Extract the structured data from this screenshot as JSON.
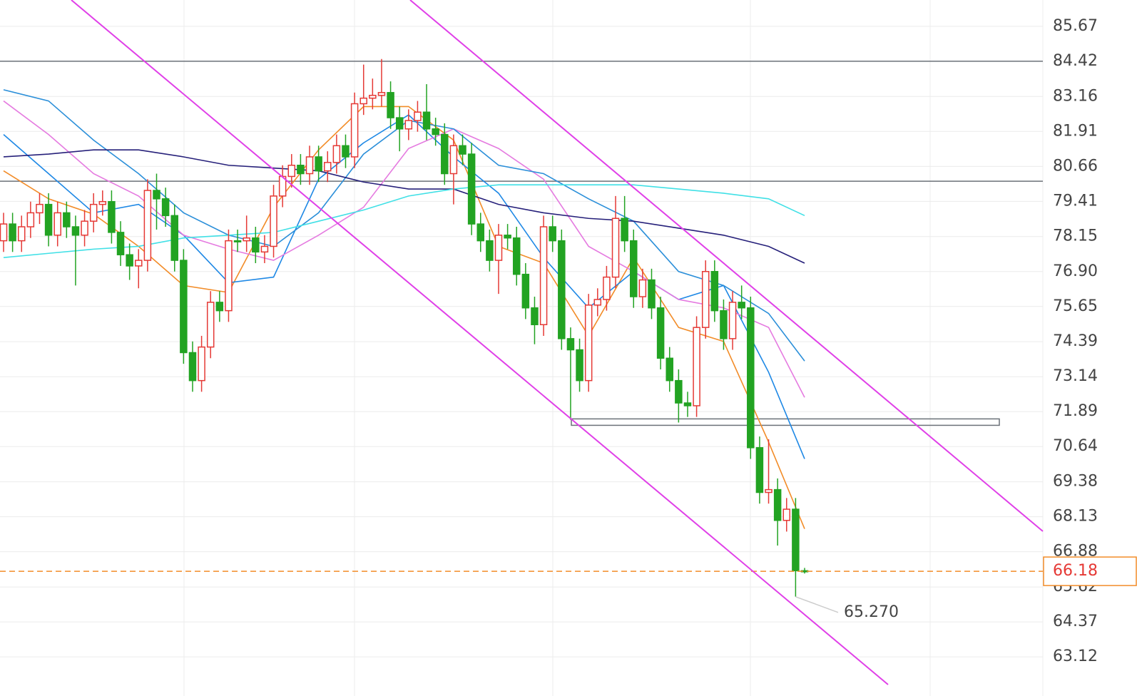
{
  "chart_data": {
    "type": "candlestick",
    "open": [
      78.0,
      78.6,
      78.0,
      78.5,
      79.0,
      79.3,
      78.2,
      79.0,
      78.5,
      78.2,
      78.7,
      79.3,
      79.4,
      78.3,
      77.5,
      77.1,
      77.3,
      79.8,
      79.5,
      78.9,
      77.3,
      74.0,
      73.0,
      74.2,
      75.8,
      75.5,
      78.0,
      78.0,
      78.1,
      77.6,
      77.8,
      79.6,
      80.3,
      80.7,
      80.4,
      81.0,
      80.5,
      80.8,
      81.4,
      81.0,
      82.9,
      83.1,
      83.2,
      83.3,
      82.4,
      82.0,
      82.3,
      82.6,
      82.0,
      81.8,
      80.4,
      81.4,
      81.1,
      78.6,
      78.0,
      77.3,
      78.2,
      78.1,
      76.8,
      75.6,
      75.0,
      78.5,
      78.0,
      74.5,
      74.1,
      73.0,
      75.7,
      75.9,
      76.7,
      78.8,
      78.0,
      76.0,
      76.6,
      75.6,
      73.8,
      73.0,
      72.2,
      72.1,
      74.9,
      76.9,
      75.5,
      74.5,
      75.8,
      75.6,
      70.6,
      69.0,
      69.1,
      68.0,
      68.4,
      66.2
    ],
    "high": [
      79.0,
      79.0,
      78.9,
      79.4,
      79.7,
      79.7,
      79.4,
      79.4,
      78.9,
      79.1,
      79.7,
      79.8,
      79.8,
      78.7,
      77.9,
      77.7,
      80.2,
      80.4,
      79.9,
      79.3,
      77.7,
      74.4,
      74.6,
      76.2,
      76.2,
      78.4,
      78.4,
      78.9,
      78.5,
      78.2,
      80.0,
      80.7,
      81.1,
      81.1,
      81.4,
      81.4,
      81.2,
      81.8,
      81.8,
      83.3,
      84.3,
      83.8,
      84.5,
      83.7,
      82.8,
      82.7,
      83.0,
      83.6,
      82.4,
      82.2,
      81.8,
      81.8,
      81.5,
      79.0,
      78.4,
      78.6,
      78.6,
      78.5,
      77.2,
      76.0,
      78.9,
      78.9,
      78.4,
      74.9,
      74.5,
      76.1,
      76.3,
      77.1,
      79.6,
      79.6,
      78.4,
      77.0,
      77.0,
      76.0,
      74.2,
      73.4,
      72.6,
      75.3,
      77.3,
      77.3,
      75.9,
      76.2,
      76.4,
      76.0,
      71.0,
      70.9,
      69.5,
      68.8,
      68.8,
      66.3
    ],
    "low": [
      77.6,
      77.6,
      77.6,
      78.1,
      78.6,
      77.8,
      77.8,
      78.1,
      76.4,
      77.8,
      78.3,
      78.9,
      77.9,
      77.1,
      76.6,
      76.3,
      76.9,
      78.4,
      78.5,
      76.9,
      73.6,
      72.6,
      72.6,
      73.8,
      75.1,
      75.1,
      77.6,
      77.6,
      77.2,
      77.2,
      77.4,
      79.2,
      79.9,
      80.0,
      80.0,
      80.1,
      80.1,
      80.4,
      80.6,
      80.6,
      82.5,
      82.7,
      82.8,
      82.0,
      81.2,
      81.6,
      81.9,
      81.6,
      81.4,
      80.0,
      79.3,
      80.7,
      78.2,
      77.6,
      76.9,
      76.1,
      77.7,
      76.4,
      75.2,
      74.3,
      74.6,
      77.6,
      74.1,
      71.6,
      72.6,
      72.6,
      75.3,
      75.5,
      76.3,
      77.6,
      75.6,
      75.6,
      75.2,
      73.4,
      72.6,
      71.5,
      71.7,
      71.7,
      74.5,
      75.1,
      74.1,
      74.1,
      75.2,
      70.2,
      68.6,
      68.6,
      67.1,
      67.6,
      65.27,
      66.1
    ],
    "close": [
      78.6,
      78.0,
      78.5,
      79.0,
      79.3,
      78.2,
      79.0,
      78.5,
      78.2,
      78.7,
      79.3,
      79.4,
      78.3,
      77.5,
      77.1,
      77.3,
      79.8,
      79.5,
      78.9,
      77.3,
      74.0,
      73.0,
      74.2,
      75.8,
      75.5,
      78.0,
      78.0,
      78.1,
      77.6,
      77.8,
      79.6,
      80.3,
      80.7,
      80.4,
      81.0,
      80.5,
      80.8,
      81.4,
      81.0,
      82.9,
      83.1,
      83.2,
      83.3,
      82.4,
      82.0,
      82.3,
      82.6,
      82.0,
      81.8,
      80.4,
      81.4,
      81.1,
      78.6,
      78.0,
      77.3,
      78.2,
      78.1,
      76.8,
      75.6,
      75.0,
      78.5,
      78.0,
      74.5,
      74.1,
      73.0,
      75.7,
      75.9,
      76.7,
      78.8,
      78.0,
      76.0,
      76.6,
      75.6,
      73.8,
      73.0,
      72.2,
      72.1,
      74.9,
      76.9,
      75.5,
      74.5,
      75.8,
      75.6,
      70.6,
      69.0,
      69.1,
      68.0,
      68.4,
      66.2,
      66.18
    ],
    "up_color": "#e53935",
    "down_color": "#22a322",
    "series": [
      {
        "color": "#f28c28",
        "x": [
          0,
          5,
          10,
          15,
          20,
          25,
          30,
          35,
          40,
          45,
          50,
          55,
          60,
          65,
          70,
          75,
          80,
          85,
          89
        ],
        "values": [
          80.5,
          79.5,
          78.95,
          77.8,
          76.4,
          76.15,
          79.2,
          81.25,
          82.8,
          82.8,
          81.6,
          77.8,
          77.2,
          74.6,
          77.4,
          74.9,
          74.4,
          70.8,
          67.7
        ]
      },
      {
        "color": "#1e88e5",
        "x": [
          0,
          5,
          10,
          15,
          20,
          25,
          30,
          35,
          40,
          45,
          50,
          55,
          60,
          65,
          70,
          75,
          80,
          85,
          89
        ],
        "values": [
          81.8,
          80.4,
          79.0,
          79.3,
          78.2,
          76.5,
          76.7,
          80.2,
          81.5,
          82.5,
          81.0,
          79.7,
          77.4,
          75.6,
          76.9,
          75.9,
          76.4,
          73.3,
          70.2
        ]
      },
      {
        "color": "#e57be0",
        "x": [
          0,
          5,
          10,
          15,
          20,
          25,
          30,
          35,
          40,
          45,
          50,
          55,
          60,
          65,
          70,
          75,
          80,
          85,
          89
        ],
        "values": [
          83.0,
          81.8,
          80.4,
          79.6,
          78.2,
          77.7,
          77.3,
          78.2,
          79.2,
          81.3,
          82.0,
          81.3,
          80.2,
          77.8,
          76.9,
          75.9,
          75.6,
          74.9,
          72.4
        ]
      },
      {
        "color": "#2b8fd9",
        "x": [
          0,
          5,
          10,
          15,
          20,
          25,
          30,
          35,
          40,
          45,
          50,
          55,
          60,
          65,
          70,
          75,
          80,
          85,
          89
        ],
        "values": [
          83.4,
          83.0,
          81.6,
          80.4,
          79.0,
          78.2,
          77.8,
          79.0,
          81.1,
          82.3,
          82.0,
          80.7,
          80.4,
          79.5,
          78.7,
          76.9,
          76.4,
          75.4,
          73.7
        ]
      },
      {
        "color": "#26207a",
        "x": [
          0,
          5,
          10,
          15,
          20,
          25,
          30,
          35,
          40,
          45,
          50,
          55,
          60,
          65,
          70,
          75,
          80,
          85,
          89
        ],
        "values": [
          81.0,
          81.1,
          81.25,
          81.25,
          81.0,
          80.7,
          80.6,
          80.5,
          80.1,
          79.85,
          79.85,
          79.3,
          79.0,
          78.8,
          78.7,
          78.45,
          78.2,
          77.8,
          77.2
        ]
      },
      {
        "color": "#40e0e6",
        "x": [
          0,
          5,
          10,
          15,
          20,
          25,
          30,
          35,
          40,
          45,
          50,
          55,
          60,
          65,
          70,
          75,
          80,
          85,
          89
        ],
        "values": [
          77.4,
          77.55,
          77.7,
          77.8,
          78.1,
          78.2,
          78.3,
          78.7,
          79.1,
          79.6,
          79.85,
          80.0,
          80.0,
          80.0,
          80.0,
          79.85,
          79.7,
          79.5,
          78.9
        ]
      }
    ],
    "levels": [
      84.42,
      80.13
    ],
    "range_box": [
      71.63,
      71.4
    ],
    "last_price": 66.18,
    "low_label": {
      "value": 65.27,
      "label": "65.270"
    },
    "ylim": [
      61.72,
      86.61
    ],
    "yticks": [
      85.67,
      84.42,
      83.16,
      81.91,
      80.66,
      79.41,
      78.15,
      {
        "value": 76.9,
        "label": "76.90"
      },
      75.65,
      74.39,
      73.14,
      71.89,
      70.64,
      69.38,
      68.13,
      66.88,
      65.62,
      64.37,
      63.12
    ],
    "grid": true
  }
}
